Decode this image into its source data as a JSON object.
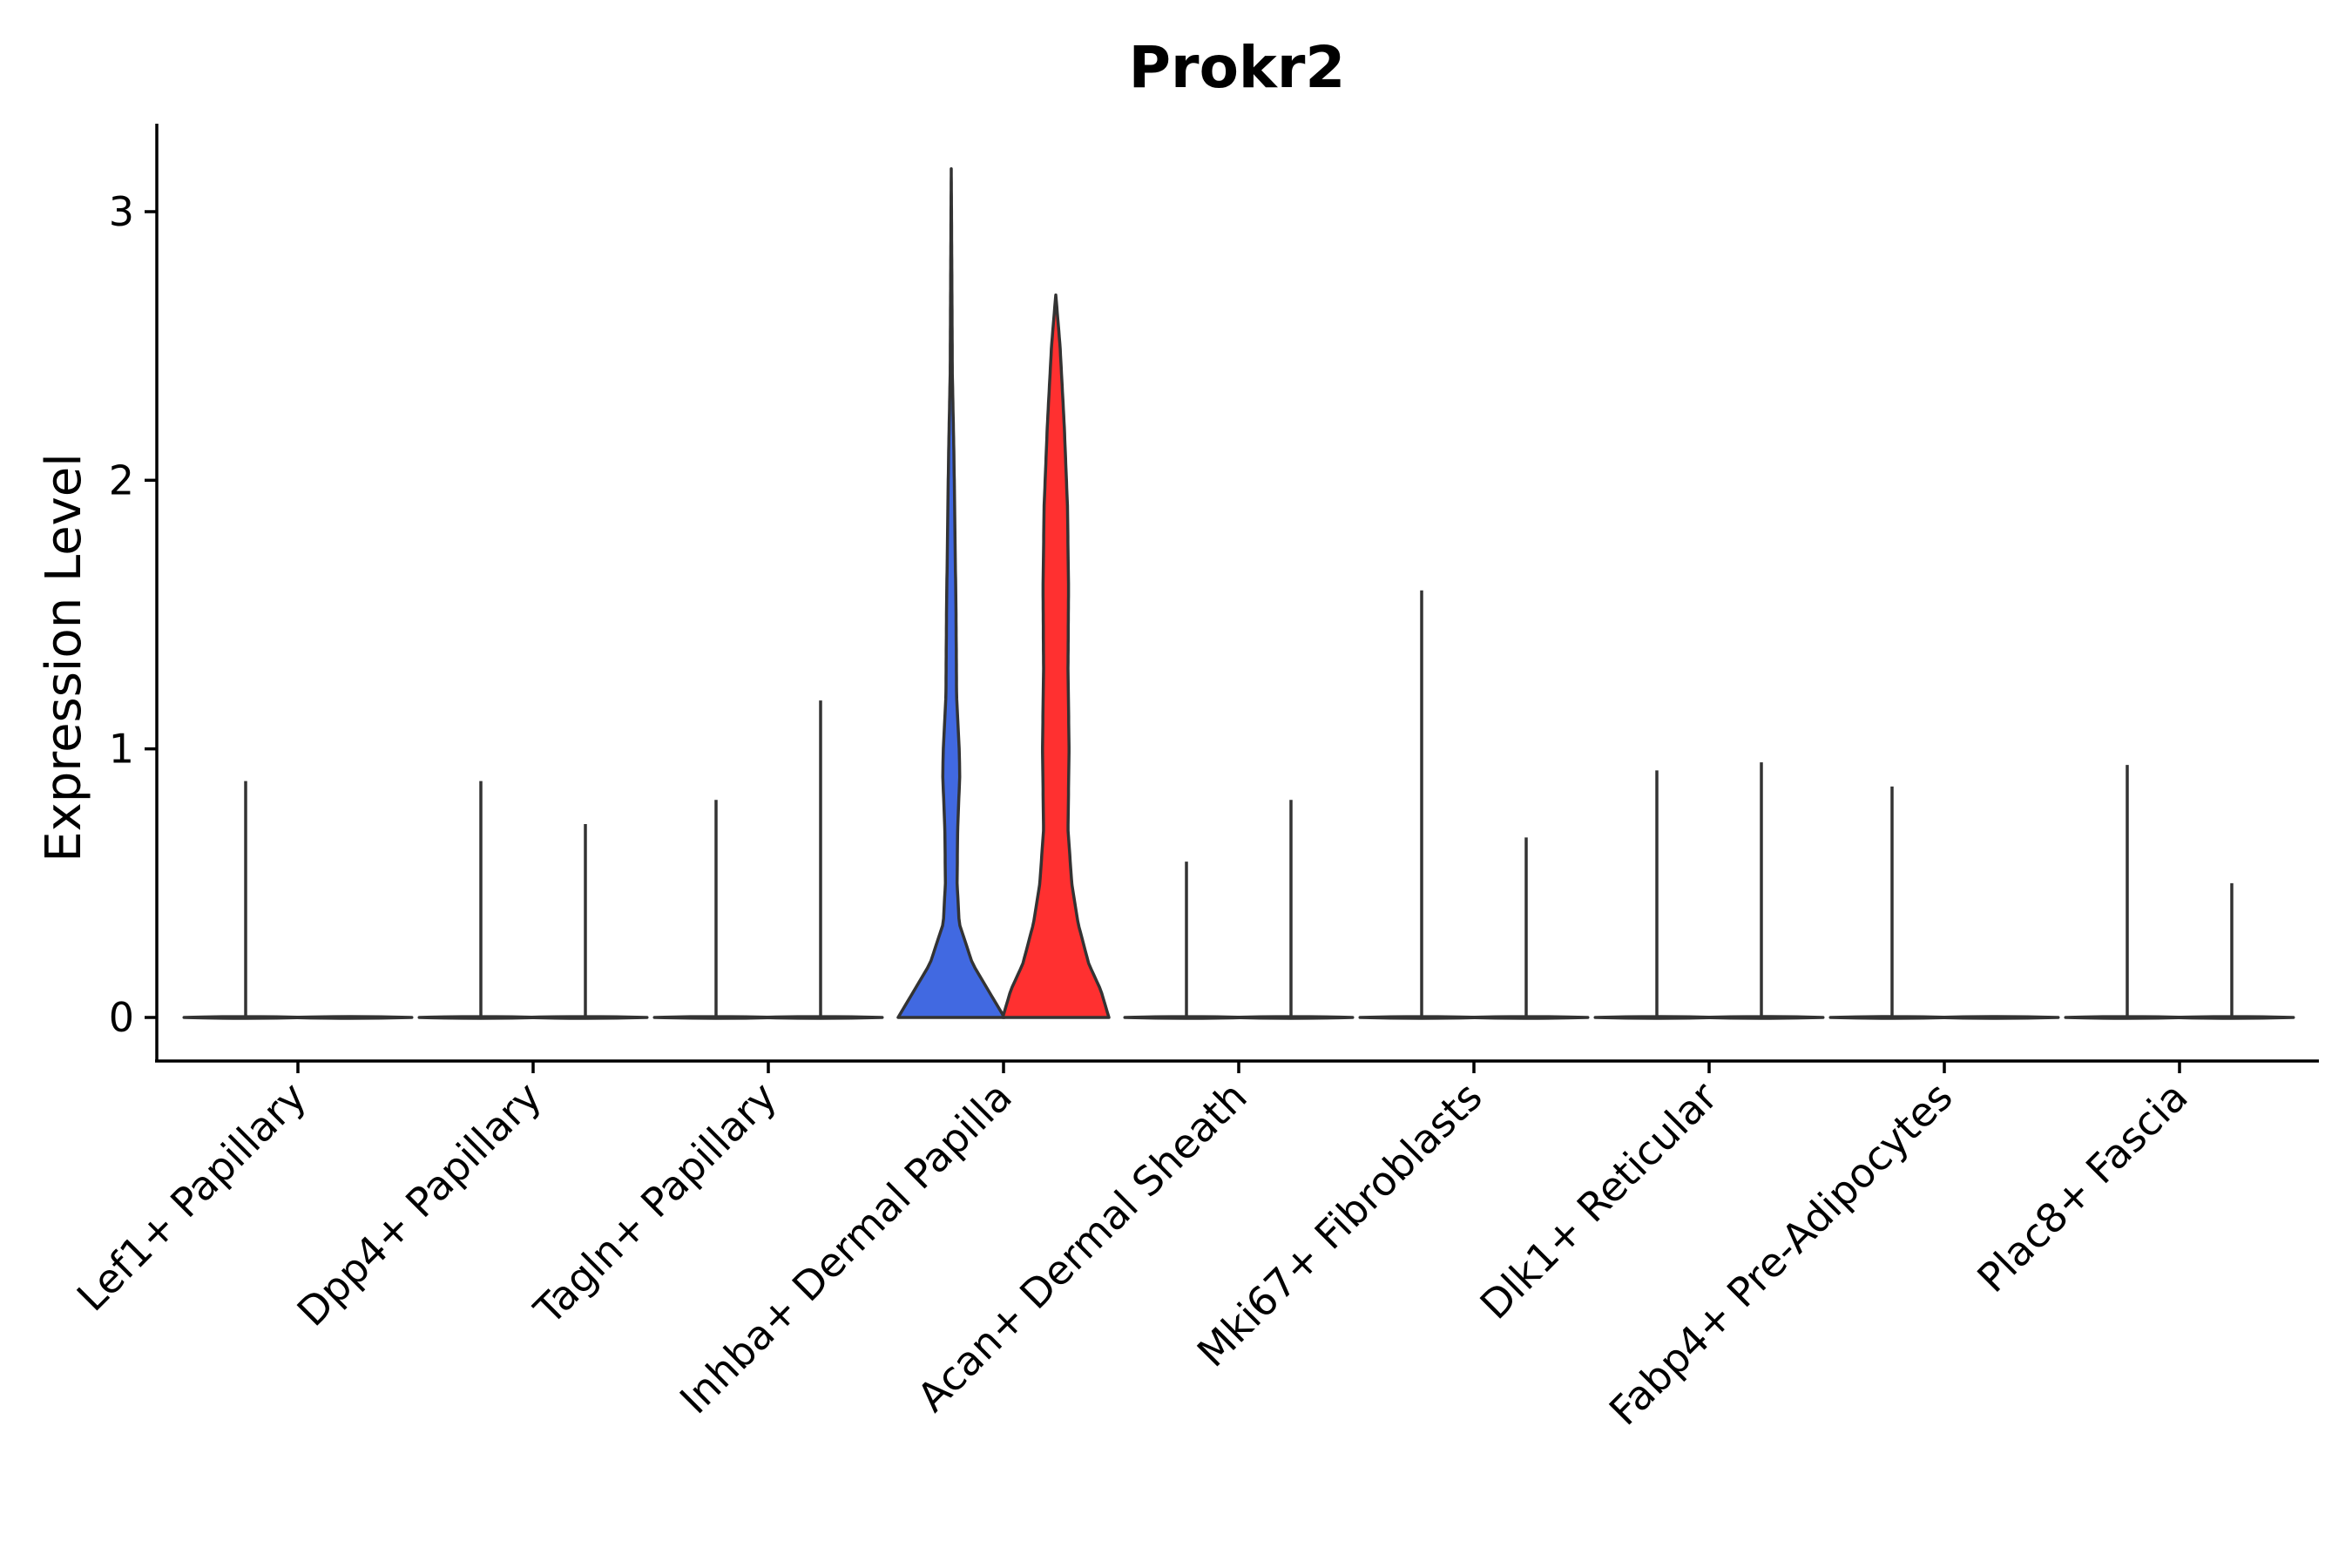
{
  "chart_data": {
    "type": "violin",
    "title": "Prokr2",
    "xlabel": "",
    "ylabel": "Expression Level",
    "ylim": [
      -0.16,
      3.33
    ],
    "yticks": [
      0,
      1,
      2,
      3
    ],
    "grid": false,
    "legend": "none",
    "categories": [
      "Lef1+ Papillary",
      "Dpp4+ Papillary",
      "Tagln+ Papillary",
      "Inhba+ Dermal Papilla",
      "Acan+ Dermal Sheath",
      "Mki67+ Fibroblasts",
      "Dlk1+ Reticular",
      "Fabp4+ Pre-Adipocytes",
      "Plac8+ Fascia"
    ],
    "series": [
      {
        "color": "#4169E1",
        "max_values": [
          0.88,
          0.88,
          0.81,
          3.16,
          0.58,
          1.59,
          0.92,
          0.86,
          0.94
        ],
        "active_category": "Inhba+ Dermal Papilla",
        "density": [
          [
            0,
            1.0
          ],
          [
            0.1,
            0.7
          ],
          [
            0.2,
            0.4
          ],
          [
            0.35,
            0.15
          ],
          [
            0.5,
            0.11
          ],
          [
            0.7,
            0.12
          ],
          [
            0.9,
            0.16
          ],
          [
            1.0,
            0.15
          ],
          [
            1.2,
            0.1
          ],
          [
            1.5,
            0.09
          ],
          [
            1.8,
            0.07
          ],
          [
            2.1,
            0.05
          ],
          [
            2.4,
            0.02
          ],
          [
            2.8,
            0.01
          ],
          [
            3.16,
            0.0
          ]
        ]
      },
      {
        "color": "#FF3030",
        "max_values": [
          0.0,
          0.72,
          1.18,
          2.69,
          0.81,
          0.67,
          0.95,
          0.0,
          0.5
        ],
        "active_category": "Inhba+ Dermal Papilla",
        "density": [
          [
            0,
            1.0
          ],
          [
            0.1,
            0.85
          ],
          [
            0.2,
            0.62
          ],
          [
            0.35,
            0.42
          ],
          [
            0.5,
            0.3
          ],
          [
            0.7,
            0.23
          ],
          [
            1.0,
            0.25
          ],
          [
            1.3,
            0.23
          ],
          [
            1.6,
            0.24
          ],
          [
            1.9,
            0.22
          ],
          [
            2.2,
            0.16
          ],
          [
            2.5,
            0.08
          ],
          [
            2.69,
            0.0
          ]
        ]
      }
    ]
  }
}
